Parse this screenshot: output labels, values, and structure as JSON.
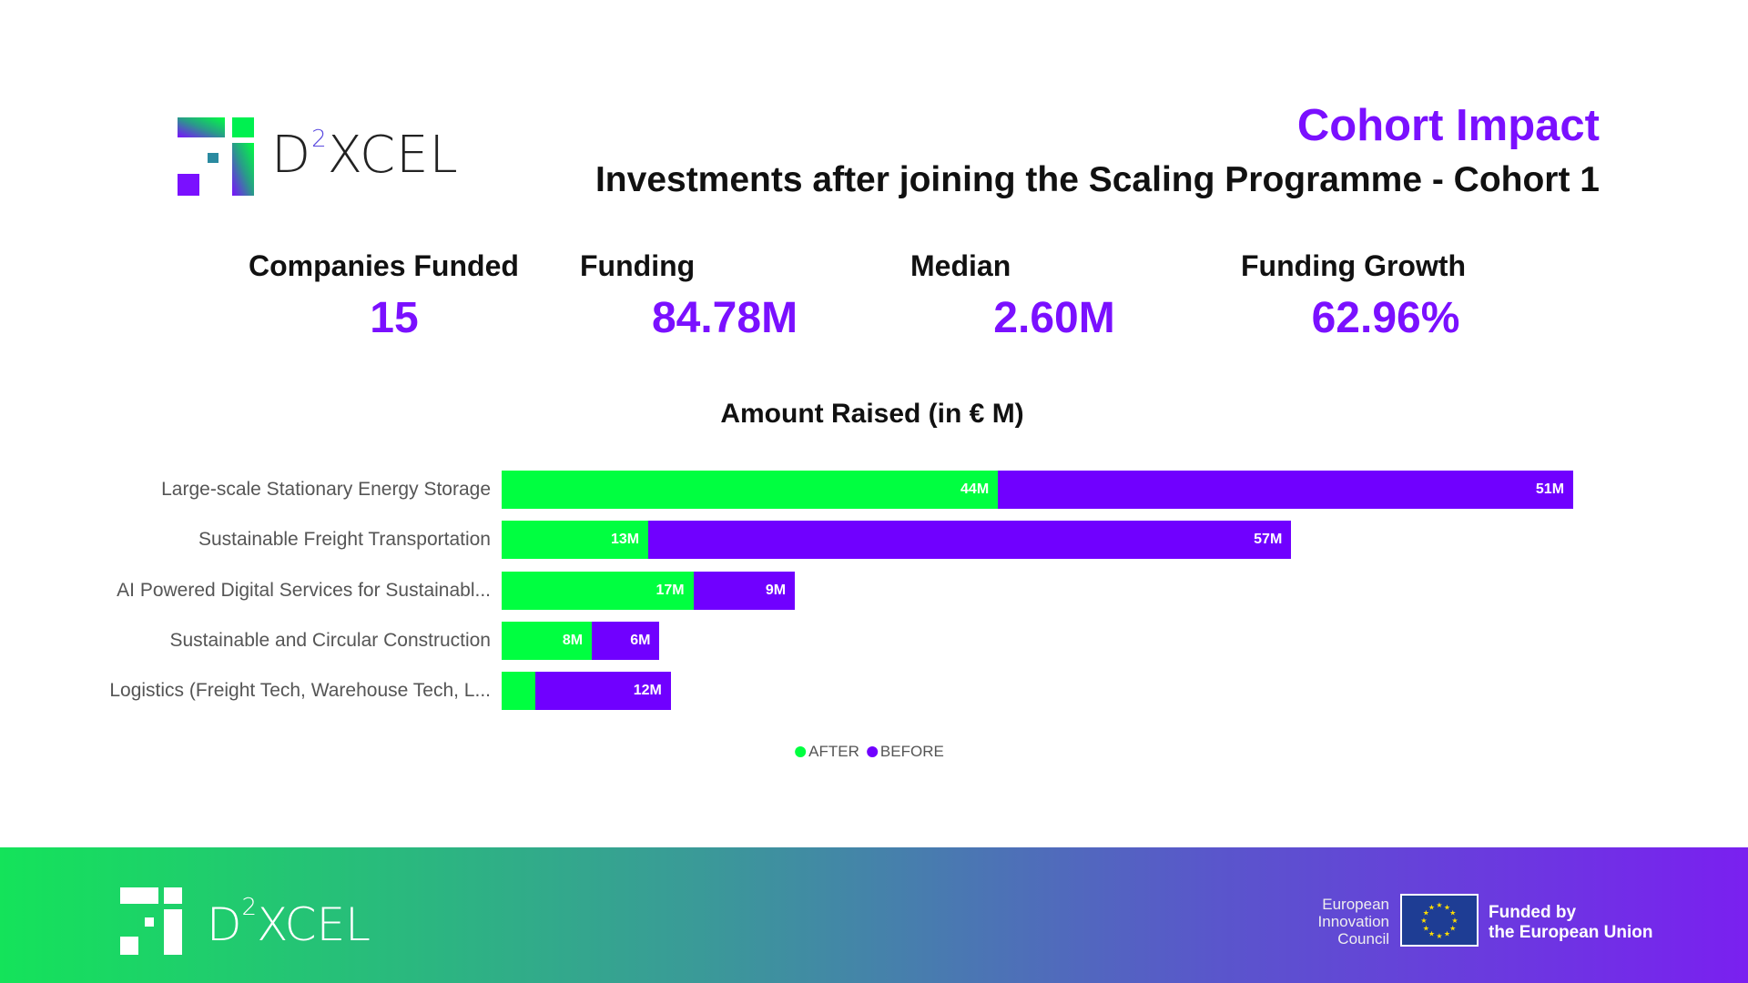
{
  "brand": {
    "name": "D",
    "sup": "2",
    "rest": "XCEL"
  },
  "header": {
    "section": "Cohort Impact",
    "title": "Investments after joining the Scaling Programme - Cohort 1"
  },
  "kpis": [
    {
      "label": "Companies Funded",
      "value": "15"
    },
    {
      "label": "Funding",
      "value": "84.78M"
    },
    {
      "label": "Median",
      "value": "2.60M"
    },
    {
      "label": "Funding Growth",
      "value": "62.96%"
    }
  ],
  "colors": {
    "after": "#00ff40",
    "before": "#7000ff",
    "accent": "#7a10ff"
  },
  "chart_data": {
    "type": "bar",
    "orientation": "horizontal-stacked",
    "title": "Amount Raised (in € M)",
    "categories": [
      "Large-scale Stationary Energy Storage",
      "Sustainable Freight Transportation",
      "AI Powered Digital Services for Sustainabl...",
      "Sustainable and Circular Construction",
      "Logistics (Freight Tech, Warehouse Tech, L..."
    ],
    "series": [
      {
        "name": "AFTER",
        "values": [
          44,
          13,
          17,
          8,
          3
        ],
        "labels": [
          "44M",
          "13M",
          "17M",
          "8M",
          ""
        ]
      },
      {
        "name": "BEFORE",
        "values": [
          51,
          57,
          9,
          6,
          12
        ],
        "labels": [
          "51M",
          "57M",
          "9M",
          "6M",
          "12M"
        ]
      }
    ],
    "legend": "bottom-center"
  },
  "footer": {
    "eic": [
      "European",
      "Innovation",
      "Council"
    ],
    "funded": [
      "Funded by",
      "the European Union"
    ]
  }
}
